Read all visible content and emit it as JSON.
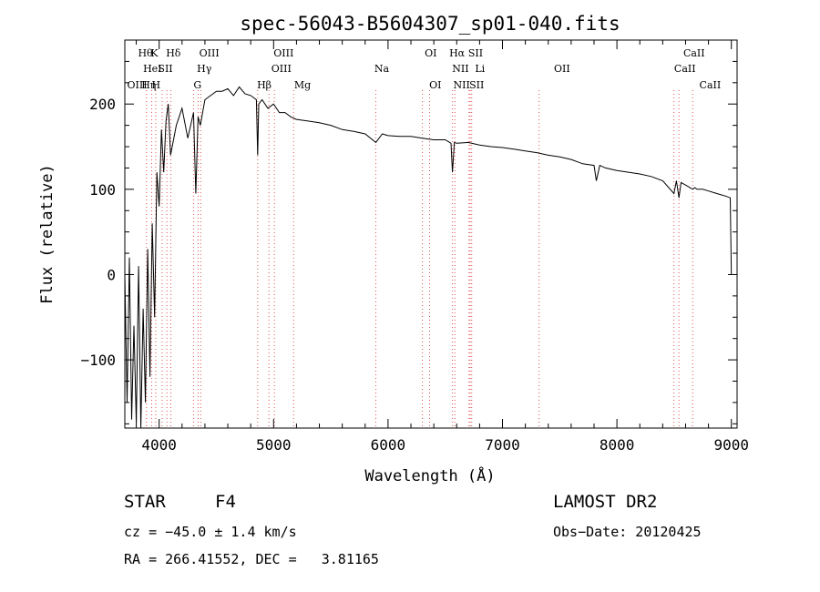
{
  "chart_data": {
    "type": "line",
    "title": "spec-56043-B5604307_sp01-040.fits",
    "xlabel": "Wavelength (Å)",
    "ylabel": "Flux (relative)",
    "xlim": [
      3700,
      9050
    ],
    "ylim": [
      -180,
      275
    ],
    "xticks": [
      4000,
      5000,
      6000,
      7000,
      8000,
      9000
    ],
    "yticks": [
      -100,
      0,
      100,
      200
    ],
    "grid": false,
    "legend": "none",
    "line_color": "#000000",
    "marker_line_color": "#e05050",
    "series": [
      {
        "x": [
          3700,
          3720,
          3740,
          3760,
          3780,
          3800,
          3820,
          3840,
          3860,
          3880,
          3900,
          3920,
          3940,
          3960,
          3980,
          4000,
          4020,
          4040,
          4060,
          4080,
          4100,
          4150,
          4200,
          4250,
          4300,
          4320,
          4340,
          4360,
          4400,
          4450,
          4500,
          4550,
          4600,
          4650,
          4700,
          4750,
          4800,
          4850,
          4861,
          4870,
          4900,
          4950,
          5000,
          5050,
          5100,
          5150,
          5200,
          5300,
          5400,
          5500,
          5600,
          5700,
          5800,
          5893,
          5950,
          6000,
          6100,
          6200,
          6300,
          6400,
          6500,
          6550,
          6563,
          6580,
          6600,
          6700,
          6800,
          6900,
          7000,
          7100,
          7200,
          7300,
          7400,
          7500,
          7600,
          7700,
          7800,
          7820,
          7850,
          7900,
          8000,
          8100,
          8200,
          8300,
          8400,
          8498,
          8520,
          8542,
          8560,
          8600,
          8662,
          8680,
          8700,
          8750,
          8800,
          8850,
          8900,
          8950,
          8990,
          9000
        ],
        "values": [
          0,
          -150,
          20,
          -170,
          -60,
          -175,
          10,
          -180,
          -40,
          -150,
          30,
          -120,
          60,
          -50,
          120,
          80,
          170,
          120,
          180,
          200,
          140,
          175,
          195,
          160,
          190,
          95,
          185,
          175,
          205,
          210,
          215,
          215,
          218,
          210,
          220,
          212,
          210,
          205,
          140,
          200,
          205,
          195,
          200,
          190,
          190,
          185,
          182,
          180,
          178,
          175,
          170,
          168,
          165,
          155,
          165,
          163,
          162,
          162,
          160,
          158,
          158,
          154,
          120,
          155,
          154,
          155,
          152,
          150,
          149,
          147,
          145,
          143,
          140,
          138,
          135,
          130,
          128,
          110,
          128,
          125,
          122,
          120,
          118,
          115,
          110,
          95,
          110,
          90,
          108,
          105,
          100,
          102,
          100,
          100,
          98,
          96,
          94,
          92,
          90,
          0
        ]
      }
    ]
  },
  "markers": {
    "x": [
      3889,
      3935,
      3970,
      4026,
      4068,
      4102,
      4300,
      4340,
      4363,
      4861,
      4959,
      5007,
      5175,
      5893,
      6300,
      6363,
      6563,
      6584,
      6708,
      6717,
      6731,
      7320,
      8498,
      8542,
      8662
    ],
    "labels": [
      {
        "text": "Hθ",
        "x": 3815,
        "row": 1
      },
      {
        "text": "K",
        "x": 3925,
        "row": 1
      },
      {
        "text": "Hδ",
        "x": 4060,
        "row": 1
      },
      {
        "text": "OIII",
        "x": 4350,
        "row": 1
      },
      {
        "text": "OIII",
        "x": 5000,
        "row": 1
      },
      {
        "text": "OI",
        "x": 6320,
        "row": 1
      },
      {
        "text": "Hα",
        "x": 6535,
        "row": 1
      },
      {
        "text": "SII",
        "x": 6700,
        "row": 1
      },
      {
        "text": "CaII",
        "x": 8580,
        "row": 1
      },
      {
        "text": "HeI",
        "x": 3860,
        "row": 2
      },
      {
        "text": "SII",
        "x": 3990,
        "row": 2
      },
      {
        "text": "Hγ",
        "x": 4330,
        "row": 2
      },
      {
        "text": "OIII",
        "x": 4980,
        "row": 2
      },
      {
        "text": "Na",
        "x": 5880,
        "row": 2
      },
      {
        "text": "NII",
        "x": 6560,
        "row": 2
      },
      {
        "text": "Li",
        "x": 6760,
        "row": 2
      },
      {
        "text": "OII",
        "x": 7450,
        "row": 2
      },
      {
        "text": "CaII",
        "x": 8500,
        "row": 2
      },
      {
        "text": "OIII",
        "x": 3720,
        "row": 3
      },
      {
        "text": "Hη",
        "x": 3845,
        "row": 3
      },
      {
        "text": "H",
        "x": 3935,
        "row": 3
      },
      {
        "text": "G",
        "x": 4300,
        "row": 3
      },
      {
        "text": "Hβ",
        "x": 4855,
        "row": 3
      },
      {
        "text": "Mg",
        "x": 5180,
        "row": 3
      },
      {
        "text": "OI",
        "x": 6360,
        "row": 3
      },
      {
        "text": "NII",
        "x": 6570,
        "row": 3
      },
      {
        "text": "SII",
        "x": 6710,
        "row": 3
      },
      {
        "text": "CaII",
        "x": 8720,
        "row": 3
      }
    ]
  },
  "info": {
    "object_type": "STAR",
    "subclass": "F4",
    "survey": "LAMOST DR2",
    "cz": "cz = −45.0 ± 1.4 km/s",
    "obs_date": "Obs−Date: 20120425",
    "coords": "RA = 266.41552, DEC =   3.81165"
  }
}
